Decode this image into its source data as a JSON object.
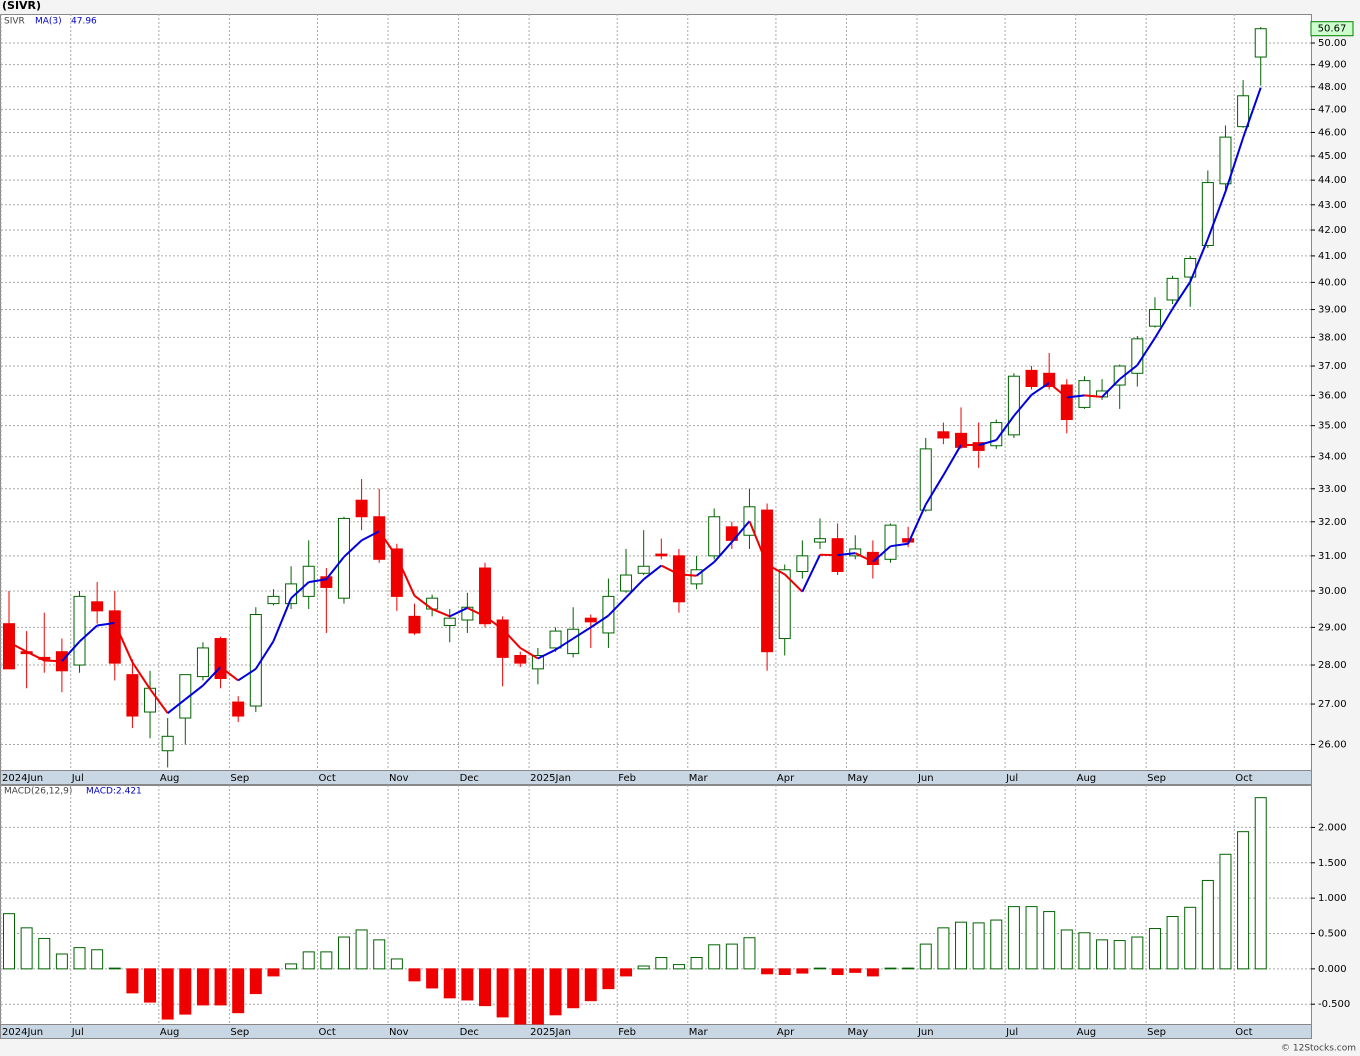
{
  "chart_data": [
    {
      "type": "candlestick",
      "title": "(SIVR)",
      "symbol": "SIVR",
      "log": true,
      "grid": true,
      "categories": [
        "2024Jun",
        null,
        null,
        null,
        "Jul",
        null,
        null,
        null,
        null,
        "Aug",
        null,
        null,
        null,
        "Sep",
        null,
        null,
        null,
        null,
        "Oct",
        null,
        null,
        null,
        "Nov",
        null,
        null,
        null,
        "Dec",
        null,
        null,
        null,
        "2025Jan",
        null,
        null,
        null,
        null,
        "Feb",
        null,
        null,
        null,
        "Mar",
        null,
        null,
        null,
        null,
        "Apr",
        null,
        null,
        null,
        "May",
        null,
        null,
        null,
        "Jun",
        null,
        null,
        null,
        null,
        "Jul",
        null,
        null,
        null,
        "Aug",
        null,
        null,
        null,
        "Sep",
        null,
        null,
        null,
        null,
        "Oct",
        null
      ],
      "open": [
        29.1,
        28.35,
        28.2,
        28.35,
        28.0,
        29.7,
        29.45,
        27.75,
        26.8,
        25.85,
        26.65,
        27.7,
        28.7,
        27.05,
        26.95,
        29.65,
        29.65,
        29.85,
        30.4,
        29.8,
        32.65,
        32.15,
        31.2,
        29.3,
        29.5,
        29.05,
        29.2,
        30.65,
        29.2,
        28.25,
        27.9,
        28.45,
        28.3,
        29.25,
        28.85,
        30.0,
        30.5,
        31.05,
        31.0,
        30.2,
        31.0,
        31.85,
        31.6,
        32.35,
        28.7,
        30.55,
        31.4,
        31.5,
        31.0,
        31.1,
        30.9,
        31.5,
        32.35,
        34.8,
        34.75,
        34.45,
        34.35,
        34.7,
        36.85,
        36.75,
        36.35,
        35.6,
        35.95,
        36.35,
        36.75,
        38.4,
        39.35,
        40.2,
        41.4,
        43.85,
        46.25,
        49.35
      ],
      "high": [
        30.0,
        28.9,
        29.4,
        28.7,
        30.0,
        30.25,
        30.0,
        28.15,
        27.85,
        26.65,
        27.75,
        28.6,
        28.75,
        27.2,
        29.55,
        30.05,
        30.7,
        31.45,
        30.65,
        32.15,
        33.3,
        33.0,
        31.35,
        29.65,
        29.9,
        29.5,
        29.95,
        30.8,
        29.3,
        28.35,
        28.45,
        29.0,
        29.55,
        29.35,
        30.35,
        31.2,
        31.75,
        31.5,
        31.2,
        31.0,
        32.4,
        32.0,
        33.0,
        32.55,
        30.75,
        31.45,
        32.1,
        31.95,
        31.6,
        31.45,
        31.95,
        31.85,
        34.6,
        35.1,
        35.6,
        35.1,
        35.2,
        36.75,
        37.0,
        37.45,
        36.55,
        36.65,
        36.55,
        37.05,
        38.05,
        39.45,
        40.25,
        41.0,
        44.4,
        46.3,
        48.3,
        50.75
      ],
      "low": [
        27.9,
        27.4,
        27.8,
        27.3,
        27.8,
        29.1,
        27.6,
        26.4,
        26.15,
        25.45,
        26.0,
        27.6,
        27.4,
        26.55,
        26.8,
        29.6,
        29.5,
        29.5,
        28.85,
        29.65,
        31.75,
        30.8,
        29.45,
        28.8,
        29.3,
        28.6,
        28.85,
        29.0,
        27.45,
        27.95,
        27.5,
        28.35,
        28.2,
        28.45,
        28.45,
        29.95,
        30.45,
        30.9,
        29.4,
        30.05,
        30.9,
        31.2,
        31.2,
        27.85,
        28.25,
        30.35,
        31.2,
        30.45,
        30.9,
        30.35,
        30.8,
        31.25,
        32.3,
        34.4,
        34.25,
        33.65,
        34.25,
        34.6,
        36.2,
        36.2,
        34.75,
        35.55,
        35.85,
        35.55,
        36.3,
        38.35,
        39.2,
        39.1,
        41.3,
        43.5,
        46.2,
        48.05
      ],
      "close": [
        27.9,
        28.3,
        28.15,
        27.85,
        29.85,
        29.45,
        28.05,
        26.7,
        27.4,
        26.2,
        27.75,
        28.45,
        27.65,
        26.7,
        29.35,
        29.85,
        30.2,
        30.7,
        30.1,
        32.1,
        32.15,
        30.9,
        29.85,
        28.85,
        29.8,
        29.25,
        29.55,
        29.1,
        28.2,
        28.05,
        28.25,
        28.9,
        28.95,
        29.15,
        29.85,
        30.45,
        30.7,
        31.0,
        29.7,
        30.6,
        32.15,
        31.45,
        32.45,
        28.35,
        30.6,
        31.0,
        31.5,
        30.55,
        31.2,
        30.75,
        31.9,
        31.4,
        34.25,
        34.6,
        34.3,
        34.2,
        35.1,
        36.65,
        36.3,
        36.3,
        35.2,
        36.5,
        36.15,
        37.0,
        37.95,
        39.0,
        40.15,
        40.9,
        43.9,
        45.8,
        47.6,
        50.67
      ],
      "up_color": "#006400",
      "down_color": "#ee0000",
      "series": [
        {
          "name": "MA(3)",
          "color_up": "#0000dd",
          "color_down": "#ee0000",
          "values": [
            28.6,
            28.35,
            28.12,
            28.1,
            28.62,
            29.05,
            29.12,
            28.07,
            27.38,
            26.77,
            27.12,
            27.47,
            27.95,
            27.6,
            27.9,
            28.63,
            29.8,
            30.25,
            30.33,
            30.97,
            31.45,
            31.72,
            30.97,
            29.87,
            29.5,
            29.3,
            29.53,
            29.3,
            28.95,
            28.45,
            28.17,
            28.4,
            28.7,
            29.0,
            29.32,
            29.82,
            30.33,
            30.72,
            30.47,
            30.43,
            30.82,
            31.4,
            32.02,
            30.75,
            30.47,
            29.98,
            31.03,
            31.02,
            31.08,
            30.83,
            31.28,
            31.35,
            32.52,
            33.42,
            34.38,
            34.37,
            34.53,
            35.32,
            36.02,
            36.42,
            35.93,
            36.0,
            35.95,
            36.55,
            37.03,
            37.98,
            39.03,
            40.02,
            41.65,
            43.53,
            45.77,
            47.96
          ]
        }
      ],
      "ylim": [
        25.39,
        51.37
      ],
      "yticks": [
        {
          "value": 26,
          "label": "26.00"
        },
        {
          "value": 27,
          "label": "27.00"
        },
        {
          "value": 28,
          "label": "28.00"
        },
        {
          "value": 29,
          "label": "29.00"
        },
        {
          "value": 30,
          "label": "30.00"
        },
        {
          "value": 31,
          "label": "31.00"
        },
        {
          "value": 32,
          "label": "32.00"
        },
        {
          "value": 33,
          "label": "33.00"
        },
        {
          "value": 34,
          "label": "34.00"
        },
        {
          "value": 35,
          "label": "35.00"
        },
        {
          "value": 36,
          "label": "36.00"
        },
        {
          "value": 37,
          "label": "37.00"
        },
        {
          "value": 38,
          "label": "38.00"
        },
        {
          "value": 39,
          "label": "39.00"
        },
        {
          "value": 40,
          "label": "40.00"
        },
        {
          "value": 41,
          "label": "41.00"
        },
        {
          "value": 42,
          "label": "42.00"
        },
        {
          "value": 43,
          "label": "43.00"
        },
        {
          "value": 44,
          "label": "44.00"
        },
        {
          "value": 45,
          "label": "45.00"
        },
        {
          "value": 46,
          "label": "46.00"
        },
        {
          "value": 47,
          "label": "47.00"
        },
        {
          "value": 48,
          "label": "48.00"
        },
        {
          "value": 49,
          "label": "49.00"
        },
        {
          "value": 50,
          "label": "50.00"
        }
      ]
    },
    {
      "type": "bar",
      "name": "MACD(26,12,9)",
      "legend": "MACD:2.421",
      "grid": true,
      "up_color": "#006400",
      "down_color": "#ee0000",
      "values": [
        0.78,
        0.58,
        0.43,
        0.21,
        0.3,
        0.27,
        0.01,
        -0.34,
        -0.47,
        -0.71,
        -0.64,
        -0.51,
        -0.51,
        -0.62,
        -0.35,
        -0.1,
        0.07,
        0.24,
        0.24,
        0.45,
        0.55,
        0.41,
        0.14,
        -0.17,
        -0.27,
        -0.41,
        -0.44,
        -0.52,
        -0.68,
        -0.78,
        -0.78,
        -0.65,
        -0.55,
        -0.45,
        -0.28,
        -0.1,
        0.04,
        0.16,
        0.06,
        0.16,
        0.34,
        0.35,
        0.44,
        -0.07,
        -0.08,
        -0.06,
        0.01,
        -0.08,
        -0.05,
        -0.1,
        0.01,
        0.01,
        0.35,
        0.58,
        0.66,
        0.65,
        0.69,
        0.88,
        0.88,
        0.81,
        0.55,
        0.51,
        0.41,
        0.4,
        0.45,
        0.57,
        0.74,
        0.87,
        1.25,
        1.62,
        1.94,
        2.421
      ],
      "ylim": [
        -0.78,
        2.6
      ],
      "yticks": [
        {
          "value": -0.5,
          "label": "-0.500"
        },
        {
          "value": 0,
          "label": "0.000"
        },
        {
          "value": 0.5,
          "label": "0.500"
        },
        {
          "value": 1,
          "label": "1.000"
        },
        {
          "value": 1.5,
          "label": "1.500"
        },
        {
          "value": 2,
          "label": "2.000"
        }
      ]
    }
  ],
  "copyright": "© 12Stocks.com"
}
